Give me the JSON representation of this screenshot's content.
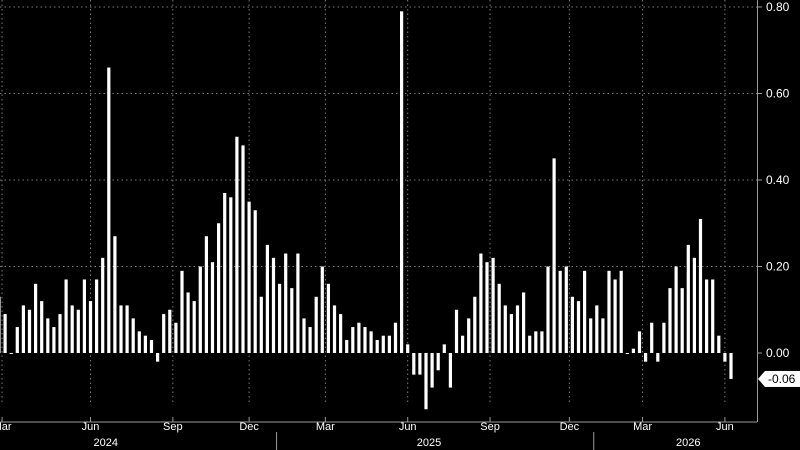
{
  "chart_data": {
    "type": "bar",
    "ylim": [
      -0.13,
      0.8
    ],
    "y_ticks": [
      "0.80",
      "0.60",
      "0.40",
      "0.20",
      "0.00"
    ],
    "y_tick_values": [
      0.8,
      0.6,
      0.4,
      0.2,
      0.0
    ],
    "grid": true,
    "month_ticks": [
      {
        "label": "Mar",
        "index": 0.5
      },
      {
        "label": "Jun",
        "index": 15
      },
      {
        "label": "Sep",
        "index": 28.5
      },
      {
        "label": "Dec",
        "index": 41
      },
      {
        "label": "Mar",
        "index": 53.5
      },
      {
        "label": "Jun",
        "index": 67
      },
      {
        "label": "Sep",
        "index": 80.5
      },
      {
        "label": "Dec",
        "index": 93.5
      },
      {
        "label": "Mar",
        "index": 105.5
      },
      {
        "label": "Jun",
        "index": 119
      }
    ],
    "years": [
      {
        "label": "2024",
        "index": 17.5
      },
      {
        "label": "2025",
        "index": 70.5
      },
      {
        "label": "2026",
        "index": 113
      }
    ],
    "year_separators": [
      45.5,
      97.5
    ],
    "last_value_label": "-0.06",
    "values": [
      0.13,
      0.09,
      0.0,
      0.06,
      0.11,
      0.1,
      0.16,
      0.12,
      0.08,
      0.06,
      0.09,
      0.17,
      0.11,
      0.1,
      0.17,
      0.12,
      0.17,
      0.22,
      0.66,
      0.27,
      0.11,
      0.11,
      0.08,
      0.05,
      0.04,
      0.03,
      -0.02,
      0.09,
      0.1,
      0.07,
      0.19,
      0.14,
      0.12,
      0.2,
      0.27,
      0.21,
      0.3,
      0.37,
      0.36,
      0.5,
      0.48,
      0.35,
      0.33,
      0.13,
      0.25,
      0.22,
      0.16,
      0.23,
      0.15,
      0.23,
      0.08,
      0.06,
      0.13,
      0.2,
      0.16,
      0.11,
      0.09,
      0.03,
      0.06,
      0.07,
      0.06,
      0.05,
      0.03,
      0.04,
      0.04,
      0.07,
      0.79,
      0.02,
      -0.05,
      -0.05,
      -0.13,
      -0.08,
      -0.04,
      0.02,
      -0.08,
      0.1,
      0.04,
      0.08,
      0.13,
      0.23,
      0.21,
      0.22,
      0.16,
      0.11,
      0.09,
      0.11,
      0.14,
      0.04,
      0.05,
      0.05,
      0.2,
      0.45,
      0.19,
      0.2,
      0.13,
      0.12,
      0.19,
      0.08,
      0.11,
      0.08,
      0.19,
      0.17,
      0.19,
      0.0,
      0.01,
      0.05,
      -0.02,
      0.07,
      -0.02,
      0.07,
      0.15,
      0.2,
      0.15,
      0.25,
      0.22,
      0.31,
      0.17,
      0.17,
      0.04,
      -0.02,
      -0.06
    ]
  }
}
